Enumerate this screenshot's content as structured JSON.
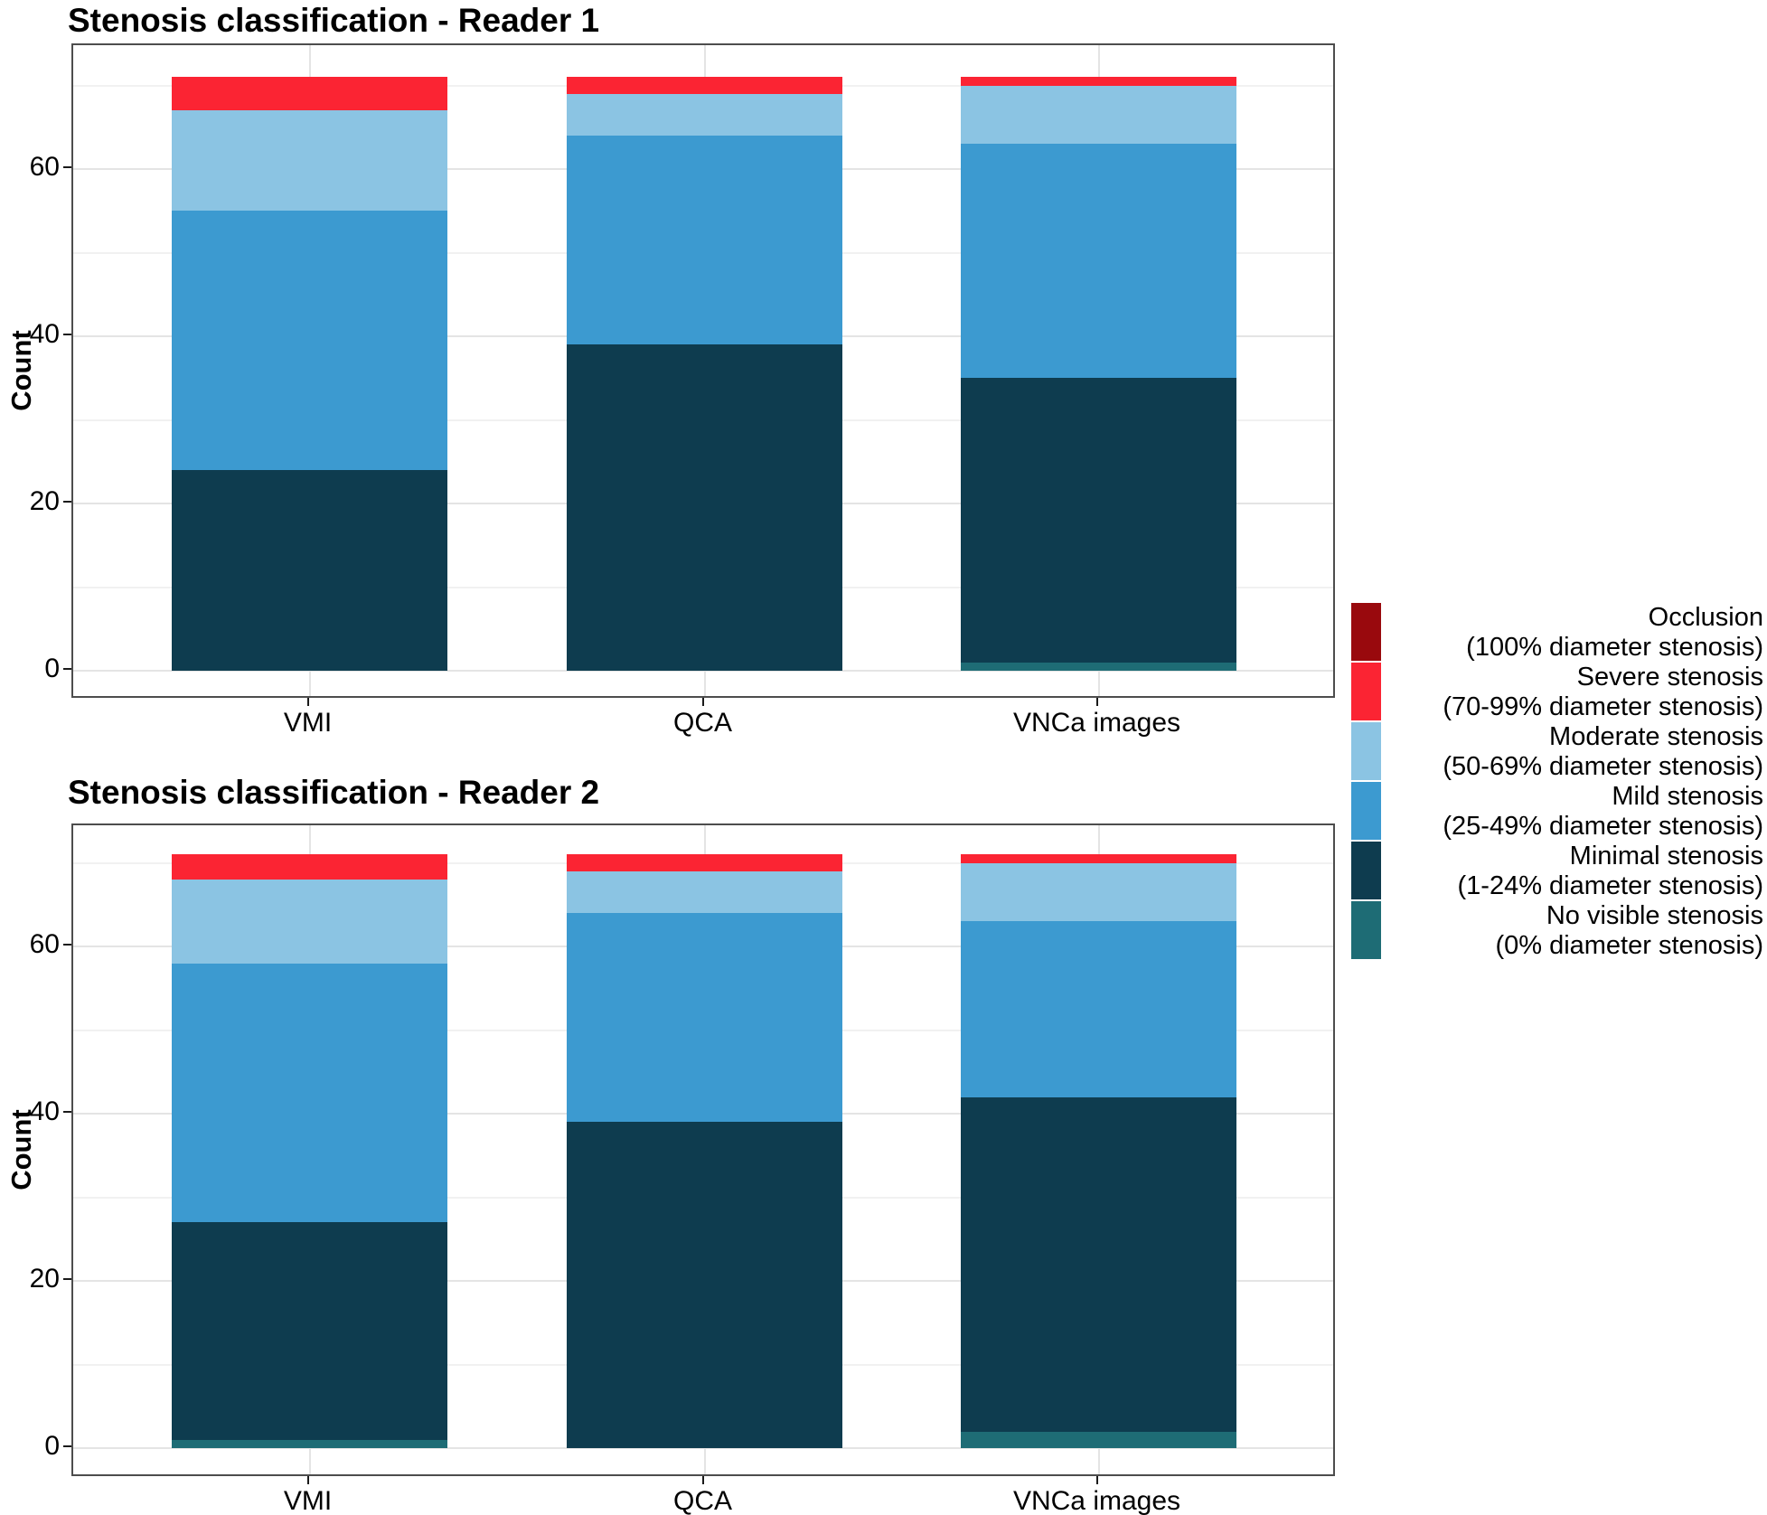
{
  "figure": {
    "background": "#FFFFFF"
  },
  "colors": {
    "occlusion": "#99090D",
    "severe": "#FB2433",
    "moderate": "#8BC4E3",
    "mild": "#3C9AD0",
    "minimal": "#0E3C4F",
    "no_visible": "#1E6C75"
  },
  "legend": {
    "entries": [
      {
        "key": "occlusion",
        "label": "Occlusion",
        "sublabel": "(100% diameter stenosis)"
      },
      {
        "key": "severe",
        "label": "Severe stenosis",
        "sublabel": "(70-99% diameter stenosis)"
      },
      {
        "key": "moderate",
        "label": "Moderate stenosis",
        "sublabel": "(50-69% diameter stenosis)"
      },
      {
        "key": "mild",
        "label": "Mild stenosis",
        "sublabel": "(25-49% diameter stenosis)"
      },
      {
        "key": "minimal",
        "label": "Minimal stenosis",
        "sublabel": "(1-24% diameter stenosis)"
      },
      {
        "key": "no_visible",
        "label": "No visible stenosis",
        "sublabel": "(0% diameter stenosis)"
      }
    ]
  },
  "chart_data": [
    {
      "type": "bar",
      "stacked": true,
      "title": "Stenosis classification - Reader 1",
      "xlabel": "",
      "ylabel": "Count",
      "categories": [
        "VMI",
        "QCA",
        "VNCa images"
      ],
      "y_ticks": [
        0,
        20,
        40,
        60
      ],
      "y_minor_ticks": [
        10,
        30,
        50,
        70
      ],
      "ylim": [
        0,
        74.5
      ],
      "grid": true,
      "legend_position": "right",
      "series": [
        {
          "key": "no_visible",
          "name": "No visible stenosis (0% diameter stenosis)",
          "values": [
            0,
            0,
            1
          ]
        },
        {
          "key": "minimal",
          "name": "Minimal stenosis (1-24% diameter stenosis)",
          "values": [
            24,
            39,
            34
          ]
        },
        {
          "key": "mild",
          "name": "Mild stenosis (25-49% diameter stenosis)",
          "values": [
            31,
            25,
            28
          ]
        },
        {
          "key": "moderate",
          "name": "Moderate stenosis (50-69% diameter stenosis)",
          "values": [
            12,
            5,
            7
          ]
        },
        {
          "key": "severe",
          "name": "Severe stenosis (70-99% diameter stenosis)",
          "values": [
            4,
            2,
            1
          ]
        },
        {
          "key": "occlusion",
          "name": "Occlusion (100% diameter stenosis)",
          "values": [
            0,
            0,
            0
          ]
        }
      ],
      "totals": [
        71,
        71,
        71
      ]
    },
    {
      "type": "bar",
      "stacked": true,
      "title": "Stenosis classification - Reader 2",
      "xlabel": "",
      "ylabel": "Count",
      "categories": [
        "VMI",
        "QCA",
        "VNCa images"
      ],
      "y_ticks": [
        0,
        20,
        40,
        60
      ],
      "y_minor_ticks": [
        10,
        30,
        50,
        70
      ],
      "ylim": [
        0,
        74.5
      ],
      "grid": true,
      "legend_position": "right",
      "series": [
        {
          "key": "no_visible",
          "name": "No visible stenosis (0% diameter stenosis)",
          "values": [
            1,
            0,
            2
          ]
        },
        {
          "key": "minimal",
          "name": "Minimal stenosis (1-24% diameter stenosis)",
          "values": [
            26,
            39,
            40
          ]
        },
        {
          "key": "mild",
          "name": "Mild stenosis (25-49% diameter stenosis)",
          "values": [
            31,
            25,
            21
          ]
        },
        {
          "key": "moderate",
          "name": "Moderate stenosis (50-69% diameter stenosis)",
          "values": [
            10,
            5,
            7
          ]
        },
        {
          "key": "severe",
          "name": "Severe stenosis (70-99% diameter stenosis)",
          "values": [
            3,
            2,
            1
          ]
        },
        {
          "key": "occlusion",
          "name": "Occlusion (100% diameter stenosis)",
          "values": [
            0,
            0,
            0
          ]
        }
      ],
      "totals": [
        71,
        71,
        71
      ]
    }
  ]
}
